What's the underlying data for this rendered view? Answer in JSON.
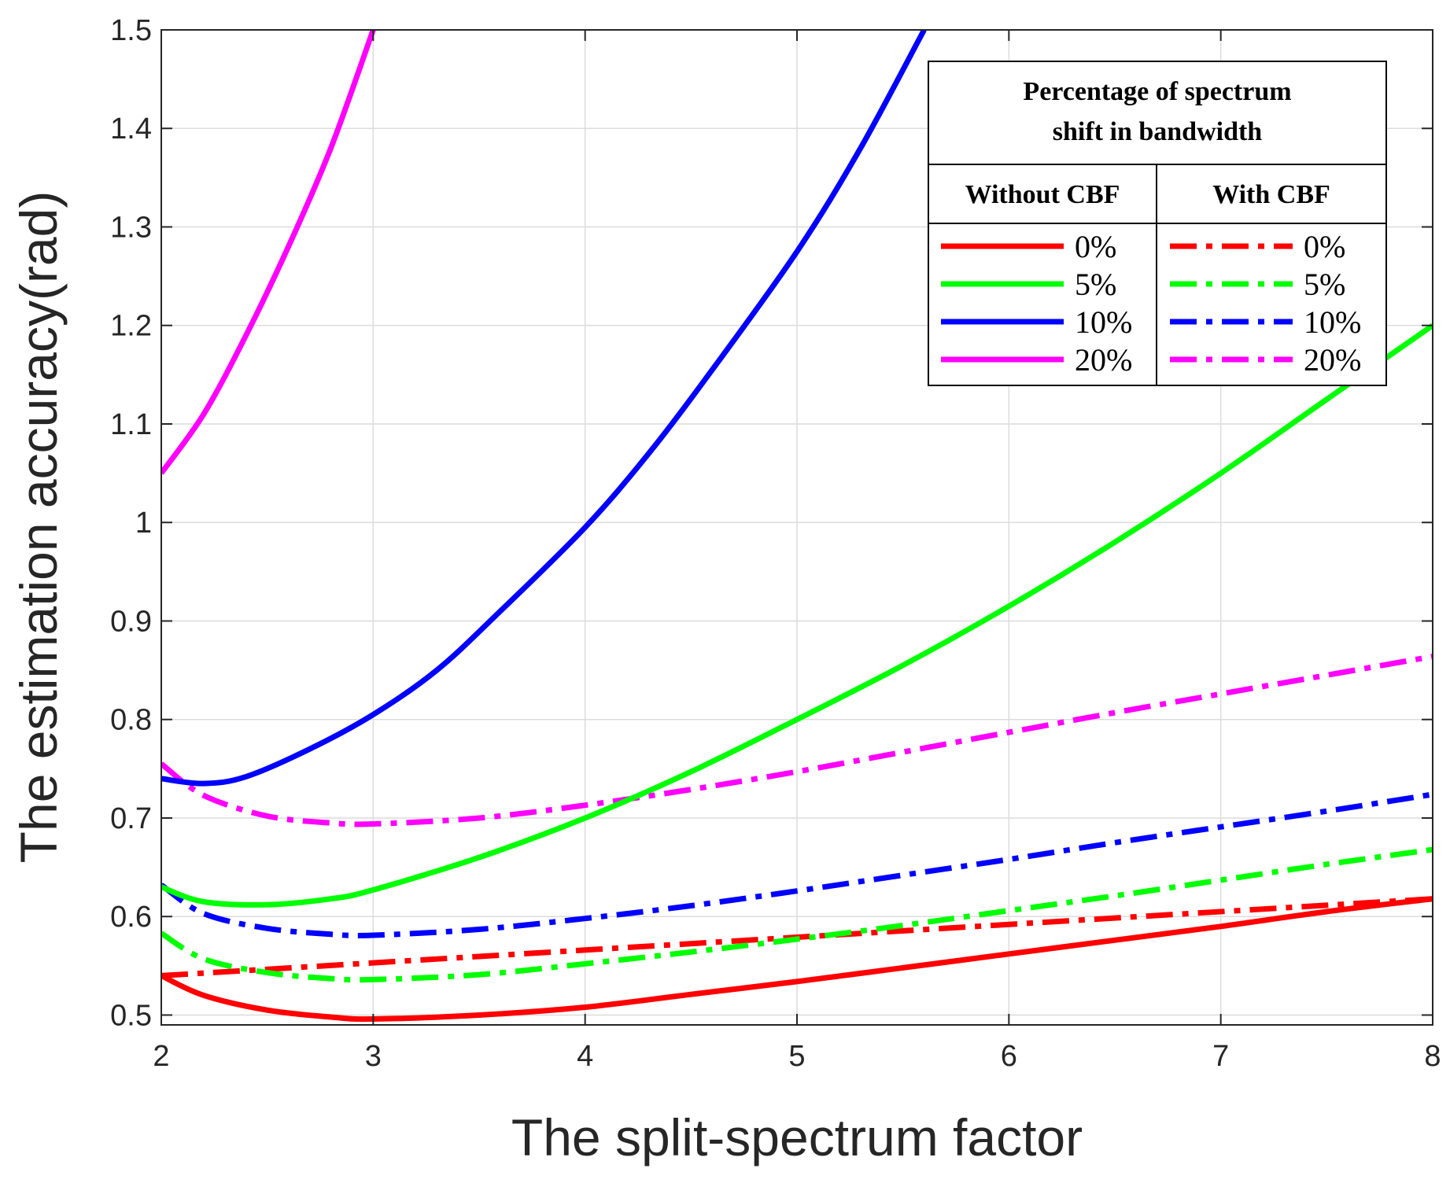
{
  "chart_data": {
    "type": "line",
    "title": "",
    "xlabel": "The split-spectrum factor",
    "ylabel": "The estimation accuracy(rad)",
    "xlim": [
      2,
      8
    ],
    "ylim": [
      0.49,
      1.5
    ],
    "grid": true,
    "x_ticks": [
      2,
      3,
      4,
      5,
      6,
      7,
      8
    ],
    "x_tick_labels": [
      "2",
      "3",
      "4",
      "5",
      "6",
      "7",
      "8"
    ],
    "y_ticks": [
      0.5,
      0.6,
      0.7,
      0.8,
      0.9,
      1.0,
      1.1,
      1.2,
      1.3,
      1.4,
      1.5
    ],
    "y_tick_labels": [
      "0.5",
      "0.6",
      "0.7",
      "0.8",
      "0.9",
      "1",
      "1.1",
      "1.2",
      "1.3",
      "1.4",
      "1.5"
    ],
    "series": [
      {
        "name": "Without CBF 0%",
        "color": "#ff0000",
        "style": "solid",
        "x": [
          2,
          2.2,
          2.5,
          2.8,
          3,
          3.5,
          4,
          4.5,
          5,
          5.5,
          6,
          6.5,
          7,
          7.5,
          8
        ],
        "y": [
          0.54,
          0.52,
          0.505,
          0.498,
          0.496,
          0.5,
          0.508,
          0.521,
          0.534,
          0.548,
          0.562,
          0.576,
          0.59,
          0.605,
          0.618
        ]
      },
      {
        "name": "Without CBF 5%",
        "color": "#00ff00",
        "style": "solid",
        "x": [
          2,
          2.2,
          2.5,
          2.8,
          3,
          3.5,
          4,
          4.5,
          5,
          5.5,
          6,
          6.5,
          7,
          7.5,
          8
        ],
        "y": [
          0.63,
          0.615,
          0.612,
          0.618,
          0.627,
          0.66,
          0.7,
          0.747,
          0.8,
          0.855,
          0.915,
          0.98,
          1.05,
          1.125,
          1.2
        ]
      },
      {
        "name": "Without CBF 10%",
        "color": "#0000ff",
        "style": "solid",
        "x": [
          2,
          2.2,
          2.4,
          2.7,
          3,
          3.3,
          3.6,
          4,
          4.3,
          4.6,
          5,
          5.3,
          5.6
        ],
        "y": [
          0.74,
          0.735,
          0.742,
          0.77,
          0.805,
          0.85,
          0.91,
          0.995,
          1.07,
          1.155,
          1.275,
          1.38,
          1.5
        ]
      },
      {
        "name": "Without CBF 20%",
        "color": "#ff00ff",
        "style": "solid",
        "x": [
          2,
          2.2,
          2.4,
          2.6,
          2.8,
          3
        ],
        "y": [
          1.05,
          1.11,
          1.19,
          1.28,
          1.38,
          1.5
        ]
      },
      {
        "name": "With CBF 0%",
        "color": "#ff0000",
        "style": "dashdot",
        "x": [
          2,
          8
        ],
        "y": [
          0.54,
          0.618
        ]
      },
      {
        "name": "With CBF 5%",
        "color": "#00ff00",
        "style": "dashdot",
        "x": [
          2,
          2.2,
          2.5,
          2.8,
          3,
          3.5,
          4,
          4.5,
          5,
          5.5,
          6,
          6.5,
          7,
          7.5,
          8
        ],
        "y": [
          0.583,
          0.557,
          0.543,
          0.537,
          0.536,
          0.541,
          0.552,
          0.564,
          0.577,
          0.591,
          0.606,
          0.621,
          0.637,
          0.653,
          0.668
        ]
      },
      {
        "name": "With CBF 10%",
        "color": "#0000ff",
        "style": "dashdot",
        "x": [
          2,
          2.2,
          2.5,
          2.8,
          3,
          3.5,
          4,
          4.5,
          5,
          5.5,
          6,
          6.5,
          7,
          7.5,
          8
        ],
        "y": [
          0.632,
          0.603,
          0.588,
          0.582,
          0.581,
          0.587,
          0.598,
          0.611,
          0.626,
          0.642,
          0.658,
          0.675,
          0.691,
          0.707,
          0.724
        ]
      },
      {
        "name": "With CBF 20%",
        "color": "#ff00ff",
        "style": "dashdot",
        "x": [
          2,
          2.2,
          2.5,
          2.8,
          3,
          3.5,
          4,
          4.5,
          5,
          5.5,
          6,
          6.5,
          7,
          7.5,
          8
        ],
        "y": [
          0.755,
          0.723,
          0.702,
          0.695,
          0.694,
          0.7,
          0.713,
          0.729,
          0.747,
          0.767,
          0.787,
          0.807,
          0.826,
          0.845,
          0.864
        ]
      }
    ],
    "legend": {
      "placement": "top-right",
      "title_lines": [
        "Percentage of spectrum",
        "shift in bandwidth"
      ],
      "col_headers": [
        "Without CBF",
        "With CBF"
      ],
      "labels": [
        "0%",
        "5%",
        "10%",
        "20%"
      ]
    }
  }
}
